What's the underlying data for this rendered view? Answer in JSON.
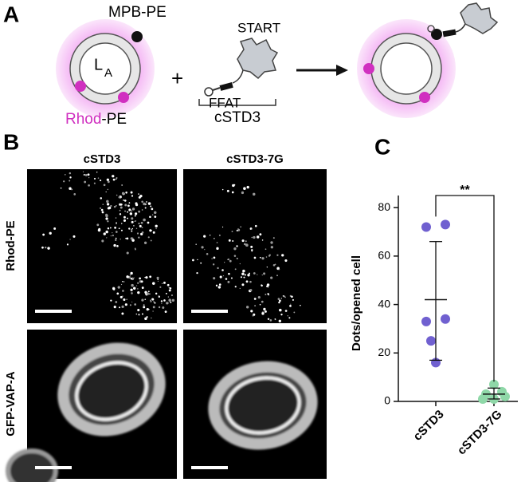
{
  "panel_a": {
    "label": "A",
    "mpb_pe": "MPB-PE",
    "la_main": "L",
    "la_sub": "A",
    "rhod": "Rhod",
    "pe": "-PE",
    "plus": "+",
    "start": "START",
    "ffat": "FFAT",
    "construct": "cSTD3"
  },
  "panel_b": {
    "label": "B",
    "columns": [
      "cSTD3",
      "cSTD3-7G"
    ],
    "rows": [
      "Rhod-PE",
      "GFP-VAP-A"
    ]
  },
  "chart_data": {
    "type": "dotplot",
    "panel_label": "C",
    "y_label": "Dots/opened cell",
    "categories": [
      "cSTD3",
      "cSTD3-7G"
    ],
    "points": [
      [
        72,
        73,
        34,
        33,
        25,
        16
      ],
      [
        7,
        4,
        3,
        2,
        1,
        1
      ]
    ],
    "colors": [
      "#7060d0",
      "#8fd8a8"
    ],
    "means": [
      42,
      3
    ],
    "error_low": [
      17,
      1
    ],
    "error_high": [
      66,
      5.5
    ],
    "ylim": [
      0,
      85
    ],
    "yticks": [
      0,
      20,
      40,
      60,
      80
    ],
    "annotation": "**"
  }
}
